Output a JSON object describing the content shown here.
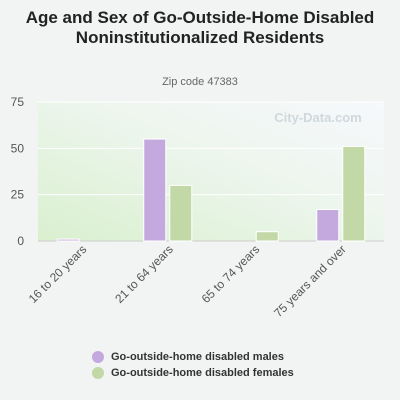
{
  "title": "Age and Sex of Go-Outside-Home Disabled Noninstitutionalized Residents",
  "subtitle": "Zip code 47383",
  "watermark": "City-Data.com",
  "colors": {
    "males": "#c3a9dd",
    "females": "#c2d8a7",
    "axis": "#cccccc"
  },
  "chart_data": {
    "type": "bar",
    "categories": [
      "16 to 20 years",
      "21 to 64 years",
      "65 to 74 years",
      "75 years and over"
    ],
    "series": [
      {
        "name": "Go-outside-home disabled males",
        "values": [
          1,
          55,
          0,
          17
        ]
      },
      {
        "name": "Go-outside-home disabled females",
        "values": [
          0,
          30,
          5,
          51
        ]
      }
    ],
    "yticks": [
      0,
      25,
      50,
      75
    ],
    "ylim": [
      0,
      75
    ],
    "grid": true,
    "legend": "bottom"
  }
}
